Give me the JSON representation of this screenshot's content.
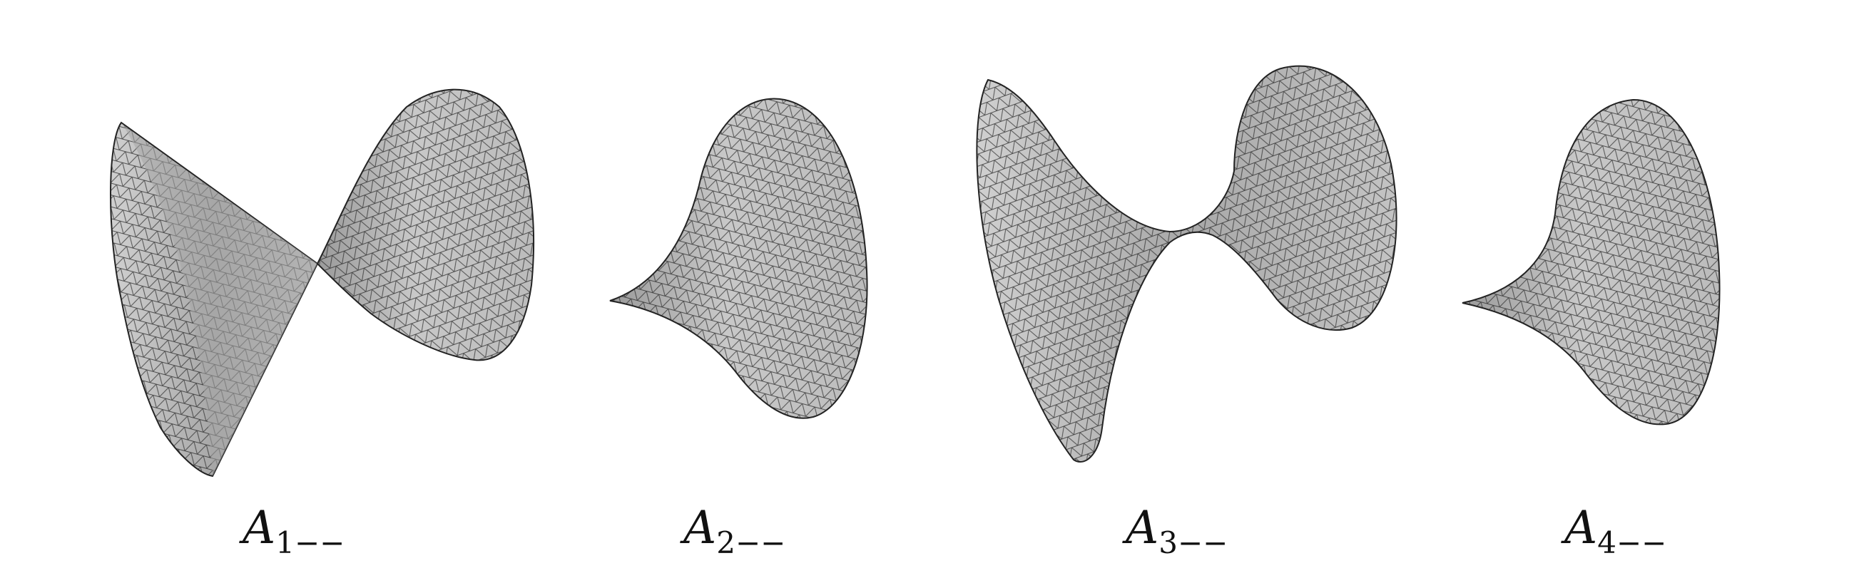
{
  "figure": {
    "panels": [
      {
        "id": "A1",
        "base": "A",
        "subscript": "1−−",
        "shape": "double-cone singularity"
      },
      {
        "id": "A2",
        "base": "A",
        "subscript": "2−−",
        "shape": "cusp funnel"
      },
      {
        "id": "A3",
        "base": "A",
        "subscript": "3−−",
        "shape": "saddle neck"
      },
      {
        "id": "A4",
        "base": "A",
        "subscript": "4−−",
        "shape": "flared funnel"
      }
    ]
  },
  "colors": {
    "surface": "#bdbdbd",
    "surface_shade": "#9c9c9c",
    "mesh": "#262626",
    "text": "#111111"
  }
}
